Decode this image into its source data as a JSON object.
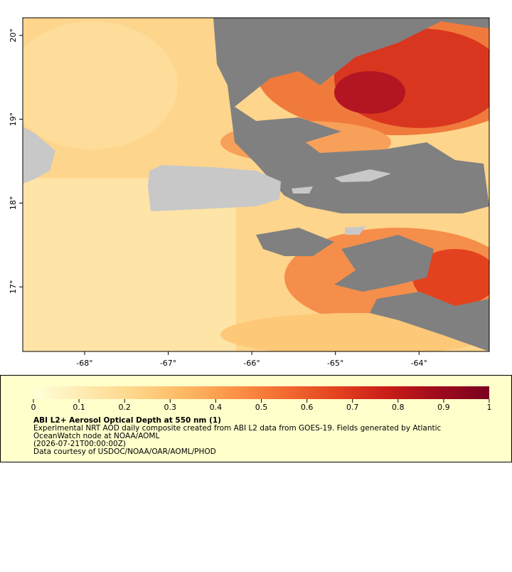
{
  "map": {
    "xlim": [
      -68.74,
      -63.16
    ],
    "ylim": [
      16.23,
      20.21
    ],
    "xticks": [
      {
        "value": -68,
        "label": "-68°"
      },
      {
        "value": -67,
        "label": "-67°"
      },
      {
        "value": -66,
        "label": "-66°"
      },
      {
        "value": -65,
        "label": "-65°"
      },
      {
        "value": -64,
        "label": "-64°"
      }
    ],
    "yticks": [
      {
        "value": 17,
        "label": "17°"
      },
      {
        "value": 18,
        "label": "18°"
      },
      {
        "value": 19,
        "label": "19°"
      },
      {
        "value": 20,
        "label": "20°"
      }
    ]
  },
  "colorbar": {
    "lim": [
      0,
      1
    ],
    "ticks": [
      0,
      0.1,
      0.2,
      0.3,
      0.4,
      0.5,
      0.6,
      0.7,
      0.8,
      0.9,
      1
    ],
    "colors": [
      "#ffffd9",
      "#feeab0",
      "#fed68a",
      "#fdb863",
      "#fc9146",
      "#f26a30",
      "#e3421f",
      "#c81d18",
      "#9e0b1c",
      "#7a0020"
    ]
  },
  "legend": {
    "title": "ABI L2+ Aerosol Optical Depth at 550 nm (1)",
    "lines": [
      "Experimental NRT AOD daily composite created from ABI L2 data from GOES-19. Fields generated by Atlantic",
      "OceanWatch node at NOAA/AOML",
      "(2026-07-21T00:00:00Z)",
      "Data courtesy of USDOC/NOAA/OAR/AOML/PHOD"
    ]
  }
}
